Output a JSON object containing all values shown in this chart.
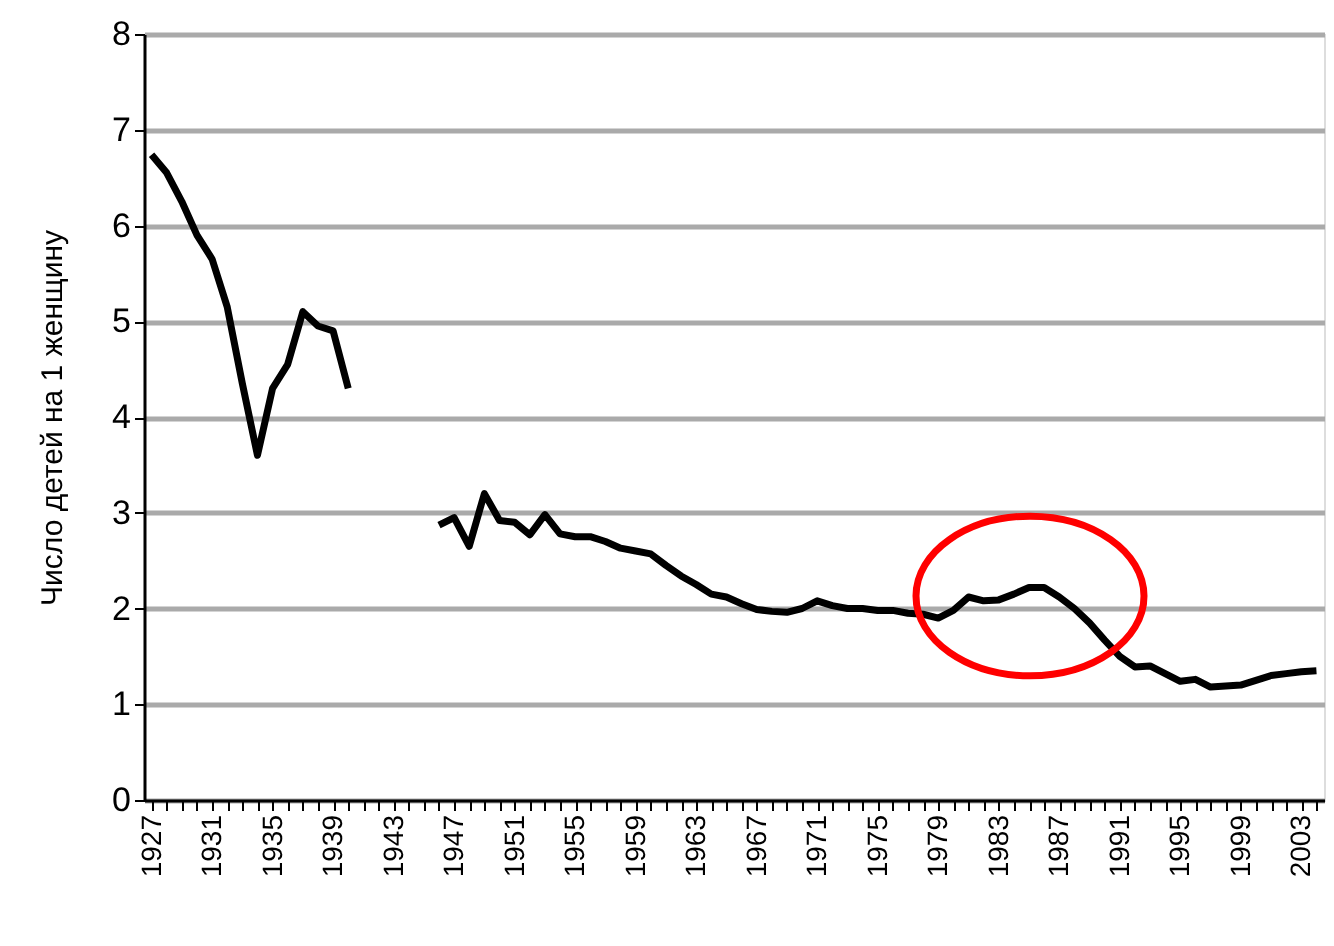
{
  "chart_data": {
    "type": "line",
    "ylabel": "Число детей на 1 женщину",
    "categories": [
      "1927",
      null,
      null,
      null,
      "1931",
      null,
      null,
      null,
      "1935",
      null,
      null,
      null,
      "1939",
      null,
      null,
      null,
      "1943",
      null,
      null,
      null,
      "1947",
      null,
      null,
      null,
      "1951",
      null,
      null,
      null,
      "1955",
      null,
      null,
      null,
      "1959",
      null,
      null,
      null,
      "1963",
      null,
      null,
      null,
      "1967",
      null,
      null,
      null,
      "1971",
      null,
      null,
      null,
      "1975",
      null,
      null,
      null,
      "1979",
      null,
      null,
      null,
      "1983",
      null,
      null,
      null,
      "1987",
      null,
      null,
      null,
      "1991",
      null,
      null,
      null,
      "1995",
      null,
      null,
      null,
      "1999",
      null,
      null,
      null,
      "2003",
      null
    ],
    "series": [
      {
        "color": "#000000",
        "values": [
          6.74,
          6.55,
          6.25,
          5.9,
          5.65,
          5.15,
          4.35,
          3.6,
          4.3,
          4.55,
          5.1,
          4.95,
          4.9,
          4.3,
          null,
          null,
          null,
          null,
          null,
          2.87,
          2.95,
          2.65,
          3.2,
          2.92,
          2.9,
          2.77,
          2.98,
          2.78,
          2.75,
          2.75,
          2.7,
          2.63,
          2.6,
          2.57,
          2.45,
          2.34,
          2.25,
          2.15,
          2.12,
          2.05,
          1.99,
          1.97,
          1.96,
          2.0,
          2.08,
          2.03,
          2.0,
          2.0,
          1.98,
          1.98,
          1.95,
          1.94,
          1.9,
          1.98,
          2.12,
          2.08,
          2.09,
          2.15,
          2.22,
          2.22,
          2.12,
          2.0,
          1.85,
          1.67,
          1.5,
          1.39,
          1.4,
          1.32,
          1.24,
          1.26,
          1.18,
          1.19,
          1.2,
          1.25,
          1.3,
          1.32,
          1.34,
          1.35
        ]
      }
    ],
    "ylim": [
      0,
      8
    ],
    "yticks": [
      0,
      1,
      2,
      3,
      4,
      5,
      6,
      7,
      8
    ],
    "grid": "y",
    "marker": "none",
    "line_style": "solid"
  }
}
